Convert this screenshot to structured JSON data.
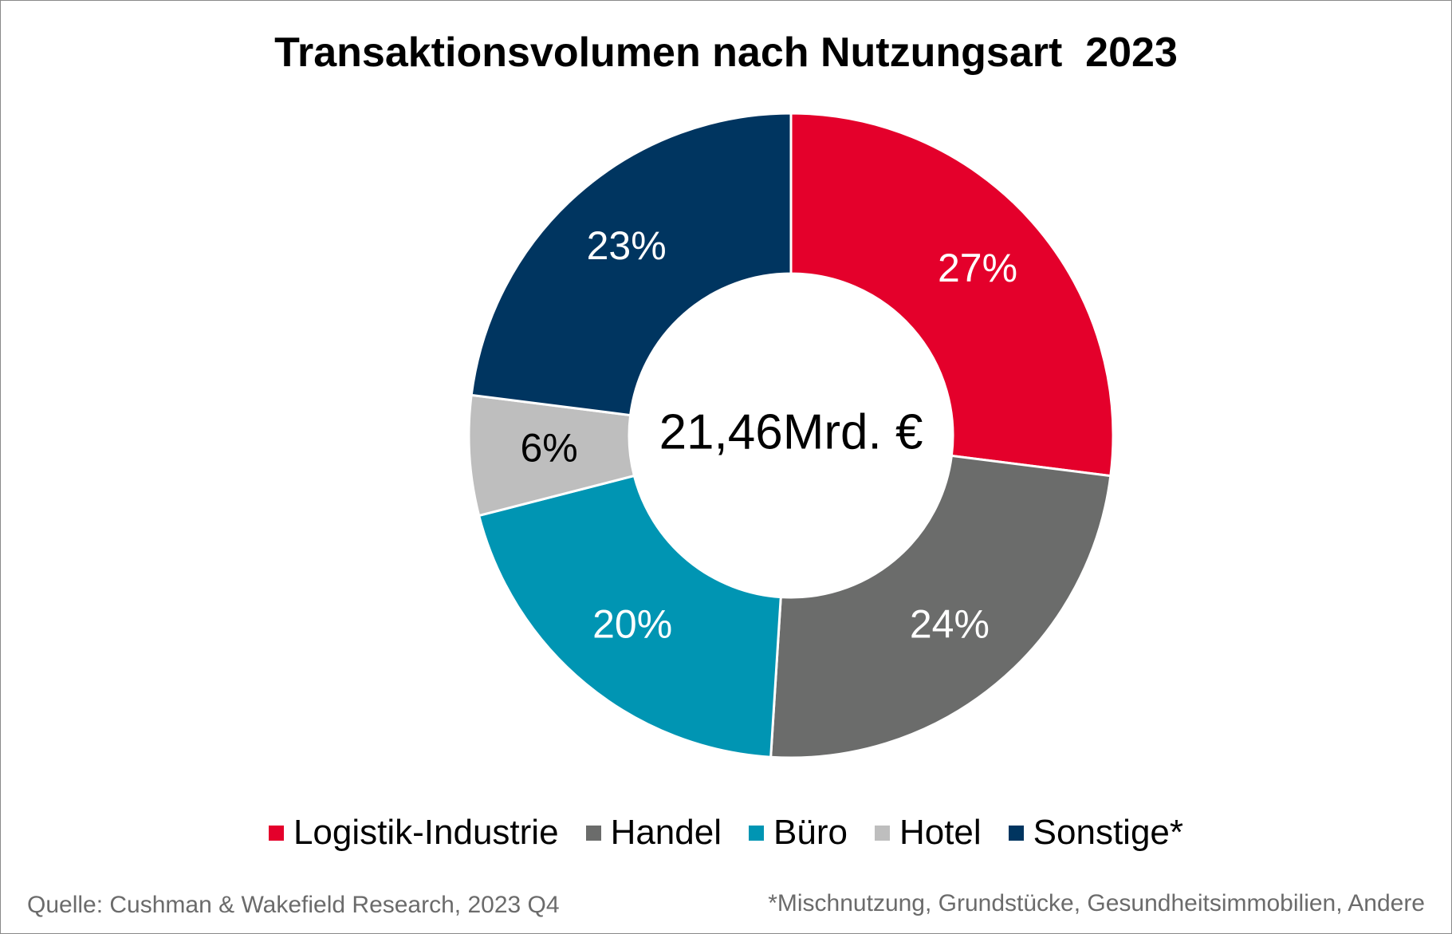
{
  "chart_data": {
    "type": "pie",
    "title": "Transaktionsvolumen nach Nutzungsart  2023",
    "center_label": "21,46Mrd. €",
    "categories": [
      "Logistik-Industrie",
      "Handel",
      "Büro",
      "Hotel",
      "Sonstige*"
    ],
    "values": [
      27,
      24,
      20,
      6,
      23
    ],
    "value_labels": [
      "27%",
      "24%",
      "20%",
      "6%",
      "23%"
    ],
    "colors": [
      "#e4002b",
      "#6b6c6b",
      "#0095b3",
      "#bebebe",
      "#003560"
    ],
    "label_colors": [
      "#ffffff",
      "#ffffff",
      "#ffffff",
      "#000000",
      "#ffffff"
    ],
    "legend_position": "bottom",
    "donut": true
  },
  "source": "Quelle: Cushman & Wakefield Research, 2023 Q4",
  "footnote": "*Mischnutzung, Grundstücke, Gesundheitsimmobilien, Andere"
}
